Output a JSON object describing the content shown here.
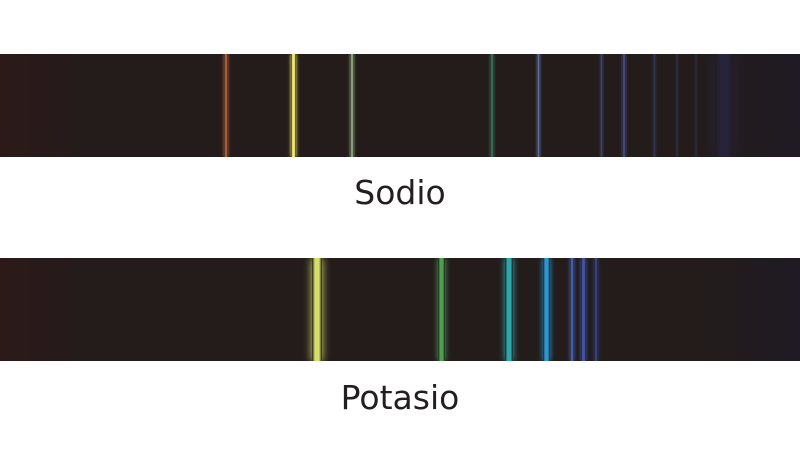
{
  "spectra": [
    {
      "id": "sodio",
      "label": "Sodio",
      "lines": [
        {
          "pos": 0.282,
          "w": 0.005,
          "color": "#c06a3a",
          "intensity": 0.85
        },
        {
          "pos": 0.367,
          "w": 0.006,
          "color": "#f2e873",
          "intensity": 1.0
        },
        {
          "pos": 0.44,
          "w": 0.004,
          "color": "#9fc08c",
          "intensity": 0.8
        },
        {
          "pos": 0.615,
          "w": 0.004,
          "color": "#3f8a6a",
          "intensity": 0.7
        },
        {
          "pos": 0.673,
          "w": 0.004,
          "color": "#6f86c0",
          "intensity": 0.75
        },
        {
          "pos": 0.752,
          "w": 0.003,
          "color": "#4a5aa0",
          "intensity": 0.6
        },
        {
          "pos": 0.78,
          "w": 0.004,
          "color": "#5360b0",
          "intensity": 0.65
        },
        {
          "pos": 0.818,
          "w": 0.003,
          "color": "#3f4a8a",
          "intensity": 0.5
        },
        {
          "pos": 0.846,
          "w": 0.003,
          "color": "#3e4688",
          "intensity": 0.45
        },
        {
          "pos": 0.87,
          "w": 0.003,
          "color": "#3a4080",
          "intensity": 0.45
        },
        {
          "pos": 0.905,
          "w": 0.022,
          "color": "#2e3068",
          "intensity": 0.4
        }
      ]
    },
    {
      "id": "potasio",
      "label": "Potasio",
      "lines": [
        {
          "pos": 0.396,
          "w": 0.013,
          "color": "#d6df6a",
          "intensity": 1.0
        },
        {
          "pos": 0.552,
          "w": 0.009,
          "color": "#4faf55",
          "intensity": 0.9
        },
        {
          "pos": 0.636,
          "w": 0.01,
          "color": "#2fb7bf",
          "intensity": 0.9
        },
        {
          "pos": 0.683,
          "w": 0.008,
          "color": "#2b9fe0",
          "intensity": 0.95
        },
        {
          "pos": 0.715,
          "w": 0.006,
          "color": "#4a6fd0",
          "intensity": 0.8
        },
        {
          "pos": 0.729,
          "w": 0.006,
          "color": "#4a62c8",
          "intensity": 0.8
        },
        {
          "pos": 0.745,
          "w": 0.005,
          "color": "#3d55b0",
          "intensity": 0.65
        }
      ]
    }
  ]
}
